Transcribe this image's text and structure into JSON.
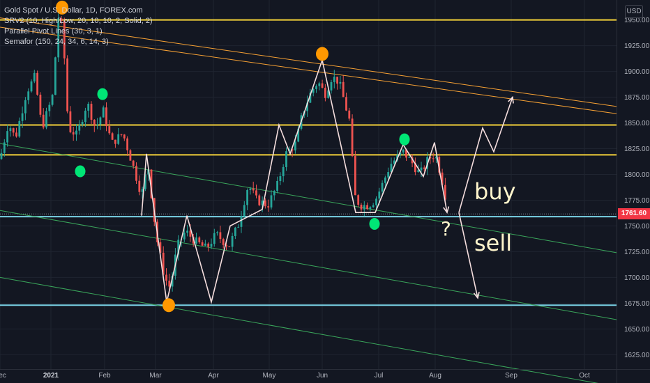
{
  "legend": {
    "title": "Gold Spot / U.S. Dollar, 1D, FOREX.com",
    "ind1": "SRV2 (10, High/Low, 20, 10, 10, 2, Solid, 2)",
    "ind2": "Parallel Pivot Lines (30, 3, 1)",
    "ind3": "Semafor (150, 24, 34, 6, 14, 3)"
  },
  "currency": "USD",
  "last_price": "1761.60",
  "annotations": {
    "buy": "buy",
    "sell": "sell",
    "question": "?"
  },
  "colors": {
    "background": "#131722",
    "up": "#26a69a",
    "down": "#ef5350",
    "resistance": "#f5d33a",
    "support": "#7ad3e6",
    "channel_orange": "#f7a134",
    "channel_green": "#3aa65b",
    "zigzag": "#f5dede",
    "dot_orange": "#ff9800",
    "dot_green": "#00e676"
  },
  "chart_data": {
    "type": "candlestick",
    "x_labels": [
      {
        "t": 0,
        "label": "Dec"
      },
      {
        "t": 73,
        "label": "2021"
      },
      {
        "t": 150,
        "label": "Feb"
      },
      {
        "t": 223,
        "label": "Mar"
      },
      {
        "t": 306,
        "label": "Apr"
      },
      {
        "t": 386,
        "label": "May"
      },
      {
        "t": 462,
        "label": "Jun"
      },
      {
        "t": 543,
        "label": "Jul"
      },
      {
        "t": 624,
        "label": "Aug"
      },
      {
        "t": 733,
        "label": "Sep"
      },
      {
        "t": 838,
        "label": "Oct"
      }
    ],
    "y_ticks": [
      1625,
      1650,
      1675,
      1700,
      1725,
      1750,
      1775,
      1800,
      1825,
      1850,
      1875,
      1900,
      1925,
      1950
    ],
    "ylim": [
      1611,
      1968
    ],
    "horizontal_levels": [
      {
        "price": 1950,
        "role": "resistance"
      },
      {
        "price": 1848,
        "role": "resistance"
      },
      {
        "price": 1819,
        "role": "resistance"
      },
      {
        "price": 1759,
        "role": "support"
      },
      {
        "price": 1673,
        "role": "support"
      }
    ],
    "trend_lines": [
      {
        "role": "channel_orange",
        "p1": [
          0,
          1952
        ],
        "p2": [
          884,
          1866
        ]
      },
      {
        "role": "channel_orange",
        "p1": [
          0,
          1943
        ],
        "p2": [
          884,
          1859
        ]
      },
      {
        "role": "channel_green",
        "p1": [
          0,
          1830
        ],
        "p2": [
          884,
          1724
        ]
      },
      {
        "role": "channel_green",
        "p1": [
          0,
          1765
        ],
        "p2": [
          884,
          1659
        ]
      },
      {
        "role": "channel_green",
        "p1": [
          0,
          1700
        ],
        "p2": [
          884,
          1594
        ]
      }
    ],
    "zigzag": [
      [
        203,
        1760
      ],
      [
        210,
        1820
      ],
      [
        239,
        1676
      ],
      [
        268,
        1760
      ],
      [
        303,
        1676
      ],
      [
        330,
        1750
      ],
      [
        376,
        1766
      ],
      [
        400,
        1848
      ],
      [
        416,
        1820
      ],
      [
        462,
        1911
      ],
      [
        510,
        1763
      ],
      [
        538,
        1763
      ],
      [
        578,
        1829
      ],
      [
        607,
        1798
      ],
      [
        623,
        1831
      ],
      [
        641,
        1763
      ]
    ],
    "projection_buy": [
      [
        658,
        1763
      ],
      [
        692,
        1845
      ],
      [
        708,
        1822
      ],
      [
        735,
        1875
      ]
    ],
    "projection_sell": [
      [
        658,
        1763
      ],
      [
        685,
        1680
      ]
    ],
    "dots": [
      {
        "t": 89,
        "price": 1962,
        "color": "orange"
      },
      {
        "t": 147,
        "price": 1878,
        "color": "green"
      },
      {
        "t": 115,
        "price": 1803,
        "color": "green"
      },
      {
        "t": 242,
        "price": 1673,
        "color": "orange"
      },
      {
        "t": 462,
        "price": 1917,
        "color": "orange"
      },
      {
        "t": 580,
        "price": 1834,
        "color": "green"
      },
      {
        "t": 537,
        "price": 1752,
        "color": "green"
      }
    ],
    "anchors": [
      [
        0,
        1815
      ],
      [
        12,
        1850
      ],
      [
        22,
        1835
      ],
      [
        38,
        1880
      ],
      [
        50,
        1895
      ],
      [
        60,
        1845
      ],
      [
        75,
        1875
      ],
      [
        84,
        1955
      ],
      [
        90,
        1940
      ],
      [
        98,
        1845
      ],
      [
        110,
        1838
      ],
      [
        125,
        1870
      ],
      [
        137,
        1845
      ],
      [
        148,
        1862
      ],
      [
        160,
        1830
      ],
      [
        176,
        1840
      ],
      [
        190,
        1810
      ],
      [
        203,
        1780
      ],
      [
        212,
        1810
      ],
      [
        224,
        1740
      ],
      [
        236,
        1700
      ],
      [
        244,
        1690
      ],
      [
        254,
        1730
      ],
      [
        266,
        1745
      ],
      [
        280,
        1735
      ],
      [
        296,
        1728
      ],
      [
        310,
        1742
      ],
      [
        328,
        1730
      ],
      [
        342,
        1752
      ],
      [
        356,
        1790
      ],
      [
        368,
        1775
      ],
      [
        384,
        1770
      ],
      [
        398,
        1790
      ],
      [
        410,
        1820
      ],
      [
        424,
        1830
      ],
      [
        434,
        1860
      ],
      [
        446,
        1880
      ],
      [
        456,
        1890
      ],
      [
        466,
        1878
      ],
      [
        476,
        1895
      ],
      [
        486,
        1890
      ],
      [
        494,
        1870
      ],
      [
        502,
        1850
      ],
      [
        508,
        1780
      ],
      [
        516,
        1770
      ],
      [
        528,
        1770
      ],
      [
        538,
        1775
      ],
      [
        548,
        1790
      ],
      [
        560,
        1810
      ],
      [
        578,
        1822
      ],
      [
        590,
        1812
      ],
      [
        602,
        1800
      ],
      [
        614,
        1815
      ],
      [
        624,
        1820
      ],
      [
        632,
        1800
      ],
      [
        640,
        1775
      ]
    ],
    "last_value": 1761.6
  }
}
